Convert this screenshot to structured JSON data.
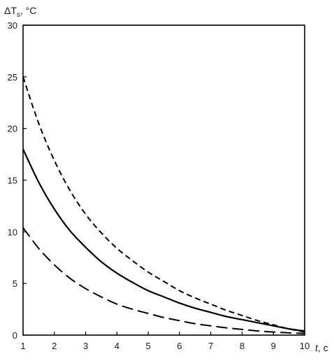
{
  "chart_data": {
    "type": "line",
    "title": "",
    "ylabel": {
      "main": "ΔT",
      "sub": "s",
      "unit": ", °C"
    },
    "xlabel": {
      "main": "t",
      "unit": ", c"
    },
    "xlim": [
      1,
      10
    ],
    "ylim": [
      0,
      30
    ],
    "xticks": [
      "1",
      "2",
      "3",
      "4",
      "5",
      "6",
      "7",
      "8",
      "9",
      "10"
    ],
    "yticks": [
      "0",
      "5",
      "10",
      "15",
      "20",
      "25",
      "30"
    ],
    "grid": false,
    "legend": "none",
    "series": [
      {
        "style": "short-dash",
        "x": [
          1,
          1.5,
          2,
          2.5,
          3,
          3.5,
          4,
          4.5,
          5,
          5.5,
          6,
          6.5,
          7,
          7.5,
          8,
          8.5,
          9,
          9.5,
          10
        ],
        "y": [
          25.0,
          20.5,
          16.9,
          14.0,
          11.7,
          9.9,
          8.4,
          7.2,
          6.1,
          5.2,
          4.3,
          3.6,
          3.0,
          2.4,
          1.9,
          1.4,
          1.0,
          0.6,
          0.3
        ]
      },
      {
        "style": "solid",
        "x": [
          1,
          1.5,
          2,
          2.5,
          3,
          3.5,
          4,
          4.5,
          5,
          5.5,
          6,
          6.5,
          7,
          7.5,
          8,
          8.5,
          9,
          9.5,
          10
        ],
        "y": [
          18.0,
          14.8,
          12.2,
          10.1,
          8.5,
          7.1,
          6.0,
          5.1,
          4.3,
          3.7,
          3.1,
          2.6,
          2.2,
          1.8,
          1.5,
          1.2,
          0.9,
          0.6,
          0.4
        ]
      },
      {
        "style": "long-dash",
        "x": [
          1,
          1.5,
          2,
          2.5,
          3,
          3.5,
          4,
          4.5,
          5,
          5.5,
          6,
          6.5,
          7,
          7.5,
          8,
          8.5,
          9,
          9.5,
          10
        ],
        "y": [
          10.4,
          8.4,
          6.8,
          5.5,
          4.5,
          3.7,
          3.0,
          2.5,
          2.1,
          1.7,
          1.4,
          1.1,
          0.9,
          0.7,
          0.55,
          0.4,
          0.3,
          0.22,
          0.15
        ]
      }
    ]
  }
}
